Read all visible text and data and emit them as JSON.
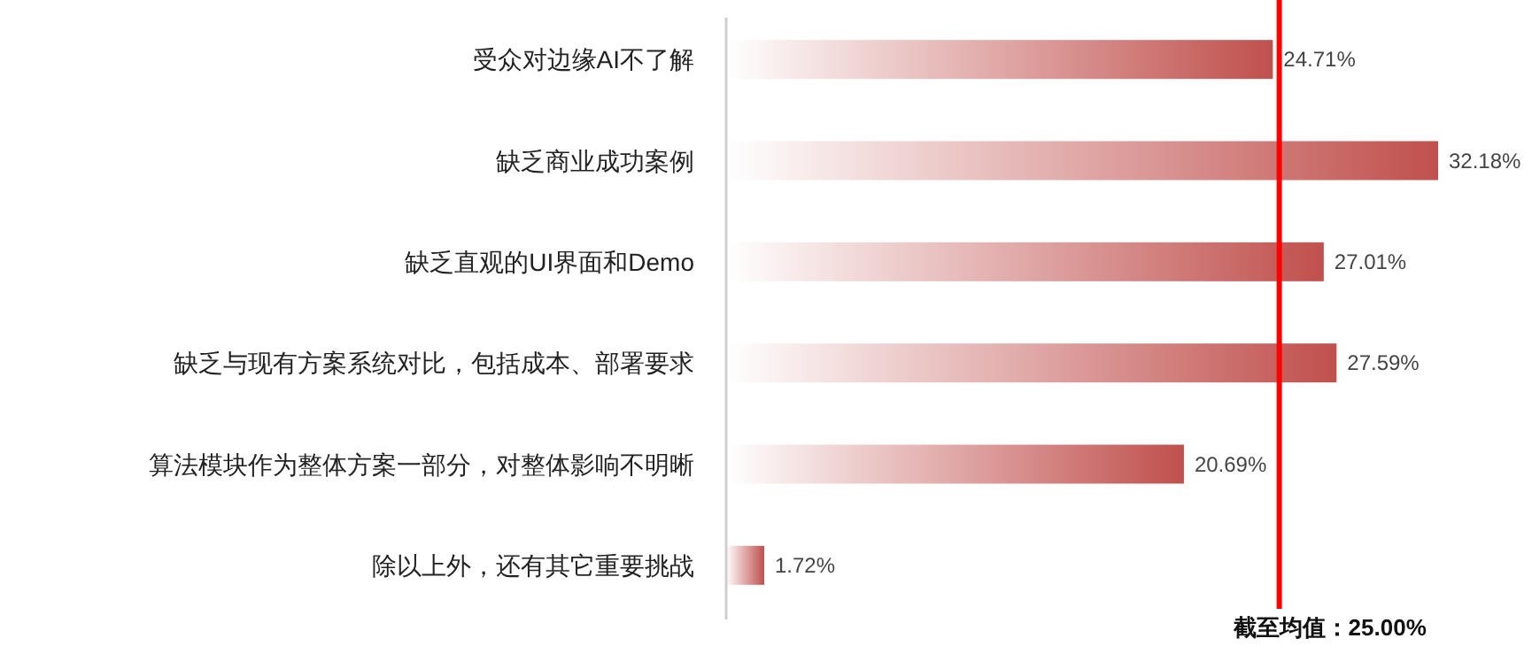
{
  "chart_data": {
    "type": "bar",
    "orientation": "horizontal",
    "categories": [
      "受众对边缘AI不了解",
      "缺乏商业成功案例",
      "缺乏直观的UI界面和Demo",
      "缺乏与现有方案系统对比，包括成本、部署要求",
      "算法模块作为整体方案一部分，对整体影响不明晰",
      "除以上外，还有其它重要挑战"
    ],
    "values": [
      24.71,
      32.18,
      27.01,
      27.59,
      20.69,
      1.72
    ],
    "value_labels": [
      "24.71%",
      "32.18%",
      "27.01%",
      "27.59%",
      "20.69%",
      "1.72%"
    ],
    "color": "#c0504d",
    "ref_lines": [
      {
        "axis": "x",
        "value": 25.0,
        "label": "截至均值：25.00%",
        "color": "#ff0000"
      }
    ]
  }
}
